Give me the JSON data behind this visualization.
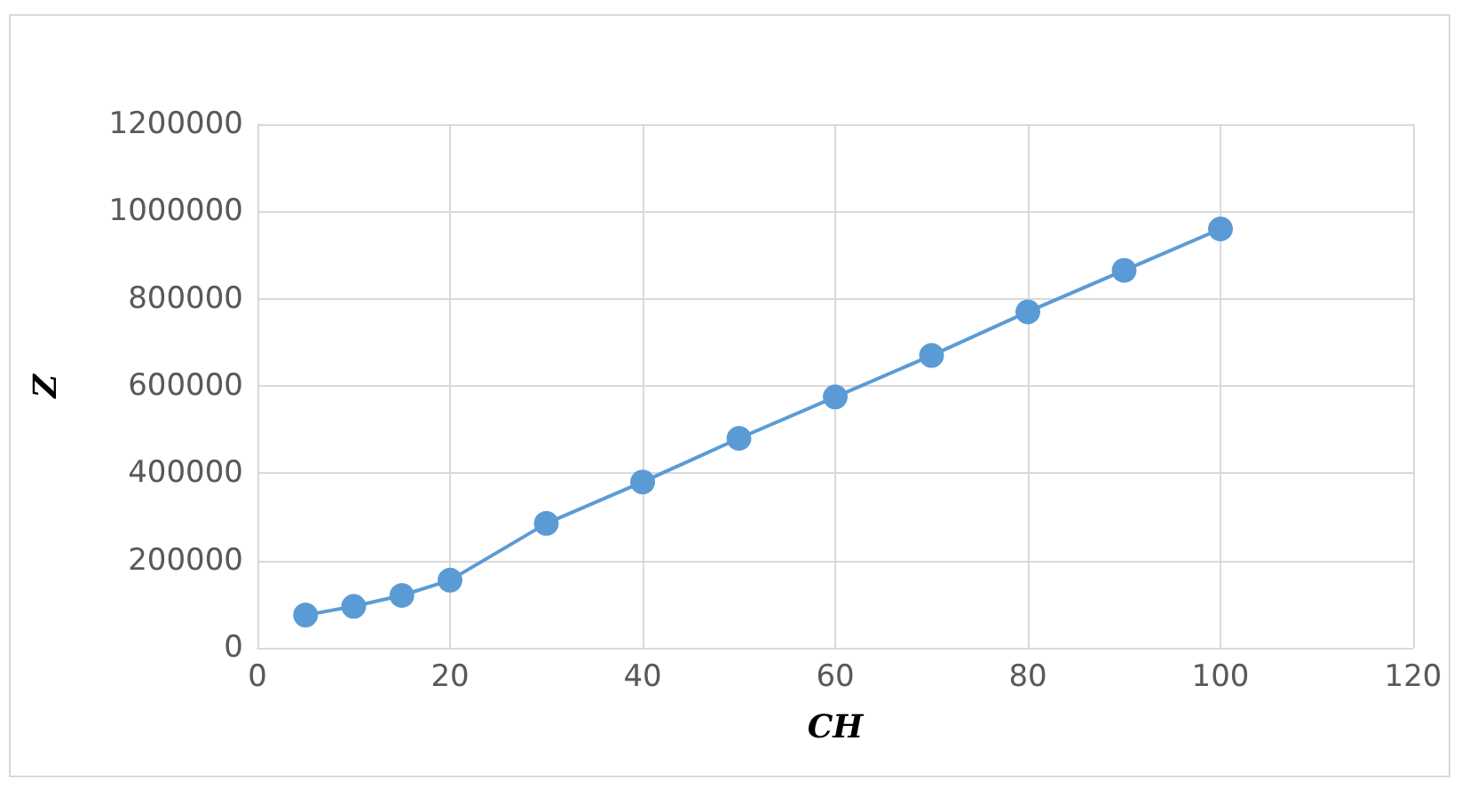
{
  "chart_data": {
    "type": "line",
    "xlabel": "CH",
    "ylabel": "Z",
    "x": [
      5,
      10,
      15,
      20,
      30,
      40,
      50,
      60,
      70,
      80,
      90,
      100
    ],
    "values": [
      75000,
      95000,
      120000,
      155000,
      285000,
      380000,
      480000,
      575000,
      670000,
      770000,
      865000,
      960000
    ],
    "color": "#5b9bd5",
    "xlim": [
      0,
      120
    ],
    "xticks": [
      0,
      20,
      40,
      60,
      80,
      100,
      120
    ],
    "ylim": [
      0,
      1200000
    ],
    "yticks": [
      0,
      200000,
      400000,
      600000,
      800000,
      1000000,
      1200000
    ],
    "grid": true,
    "marker": "circle",
    "line_style": "solid"
  }
}
